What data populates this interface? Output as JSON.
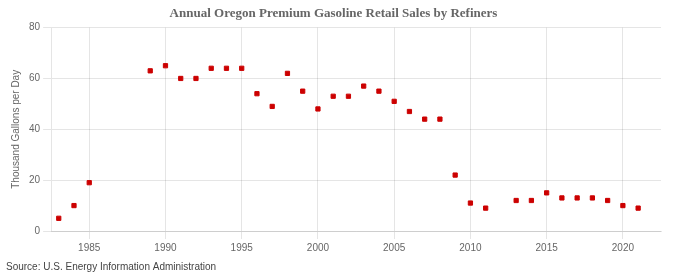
{
  "chart_data": {
    "type": "scatter",
    "title": "Annual Oregon Premium Gasoline Retail Sales by Refiners",
    "ylabel": "Thousand Gallons per Day",
    "annotations": [
      "Source: U.S. Energy Information Administration"
    ],
    "x": [
      1983,
      1984,
      1985,
      1989,
      1990,
      1991,
      1992,
      1993,
      1994,
      1995,
      1996,
      1997,
      1998,
      1999,
      2000,
      2001,
      2002,
      2003,
      2004,
      2005,
      2006,
      2007,
      2008,
      2009,
      2010,
      2011,
      2013,
      2014,
      2015,
      2016,
      2017,
      2018,
      2019,
      2020,
      2021
    ],
    "values": [
      5,
      10,
      19,
      63,
      65,
      60,
      60,
      64,
      64,
      64,
      54,
      49,
      62,
      55,
      48,
      53,
      53,
      57,
      55,
      51,
      47,
      44,
      44,
      22,
      11,
      9,
      12,
      12,
      15,
      13,
      13,
      13,
      12,
      10,
      9
    ],
    "color": "#cc0000",
    "marker": "square",
    "xlim": [
      1982.5,
      2022.5
    ],
    "ylim": [
      0,
      80
    ],
    "xticks": [
      1985,
      1990,
      1995,
      2000,
      2005,
      2010,
      2015,
      2020
    ],
    "yticks": [
      0,
      20,
      40,
      60,
      80
    ],
    "grid": true
  }
}
